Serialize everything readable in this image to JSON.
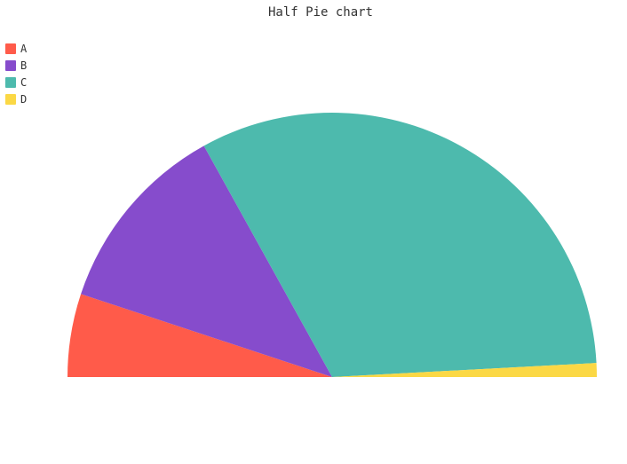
{
  "chart_data": {
    "type": "pie",
    "variant": "half-pie",
    "title": "Half Pie chart",
    "categories": [
      "A",
      "B",
      "C",
      "D"
    ],
    "values": [
      6,
      14,
      38,
      1
    ],
    "colors": [
      "#ff5b4a",
      "#864ccc",
      "#4dbaad",
      "#fbd845"
    ],
    "legend_position": "top-left"
  }
}
